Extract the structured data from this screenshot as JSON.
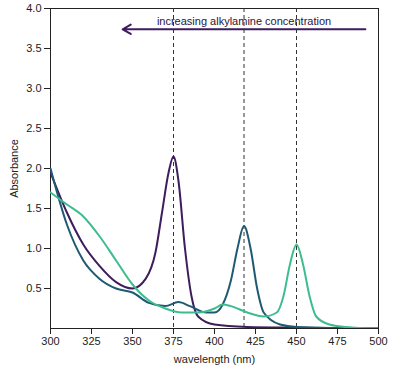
{
  "chart_data": {
    "type": "line",
    "xlabel": "wavelength (nm)",
    "ylabel": "Absorbance",
    "xlim": [
      300,
      500
    ],
    "xticks": [
      300,
      325,
      350,
      375,
      400,
      425,
      450,
      475,
      500
    ],
    "ylim": [
      0,
      4
    ],
    "yticks": [
      0.5,
      {
        "value": 1,
        "label": "1.0"
      },
      1.5,
      {
        "value": 2,
        "label": "2.0"
      },
      2.5,
      {
        "value": 3,
        "label": "3.0"
      },
      3.5,
      {
        "value": 4,
        "label": "4.0"
      }
    ],
    "grid": false,
    "annotation": "increasing alkylamine concentration",
    "vlines": [
      375,
      418,
      450
    ],
    "series": [
      {
        "color": "#3d1d5c",
        "x": [
          300,
          310,
          320,
          330,
          340,
          350,
          358,
          364,
          368,
          372,
          375,
          378,
          382,
          386,
          390,
          400,
          420,
          450,
          500
        ],
        "values": [
          1.95,
          1.45,
          1.05,
          0.78,
          0.58,
          0.5,
          0.62,
          0.95,
          1.45,
          1.95,
          2.15,
          1.85,
          1.0,
          0.4,
          0.15,
          0.05,
          0.02,
          0.01,
          0
        ]
      },
      {
        "color": "#1f5a73",
        "x": [
          300,
          310,
          320,
          330,
          340,
          350,
          360,
          370,
          378,
          385,
          395,
          400,
          405,
          410,
          414,
          418,
          422,
          426,
          430,
          440,
          450,
          500
        ],
        "values": [
          2.0,
          1.3,
          0.85,
          0.62,
          0.5,
          0.45,
          0.32,
          0.28,
          0.33,
          0.28,
          0.2,
          0.2,
          0.3,
          0.6,
          1.0,
          1.28,
          1.0,
          0.5,
          0.2,
          0.05,
          0.02,
          0
        ]
      },
      {
        "color": "#3dbd8e",
        "x": [
          300,
          310,
          320,
          330,
          340,
          350,
          360,
          370,
          380,
          390,
          400,
          405,
          410,
          420,
          430,
          438,
          442,
          446,
          450,
          454,
          458,
          462,
          470,
          480,
          500
        ],
        "values": [
          1.7,
          1.55,
          1.4,
          1.15,
          0.85,
          0.55,
          0.35,
          0.25,
          0.2,
          0.2,
          0.25,
          0.3,
          0.28,
          0.2,
          0.15,
          0.2,
          0.4,
          0.8,
          1.05,
          0.8,
          0.4,
          0.15,
          0.05,
          0.02,
          0
        ]
      }
    ]
  }
}
